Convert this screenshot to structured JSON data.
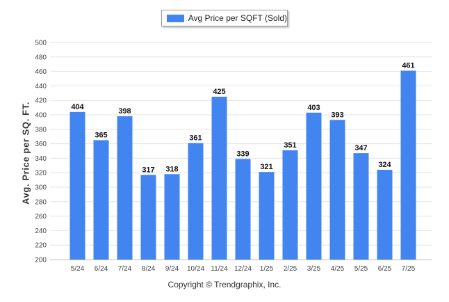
{
  "chart_data": {
    "type": "bar",
    "title": "",
    "xlabel": "",
    "ylabel": "Avg. Price per SQ. FT.",
    "categories": [
      "5/24",
      "6/24",
      "7/24",
      "8/24",
      "9/24",
      "10/24",
      "11/24",
      "12/24",
      "1/25",
      "2/25",
      "3/25",
      "4/25",
      "5/25",
      "6/25",
      "7/25"
    ],
    "series": [
      {
        "name": "Avg Price per SQFT (Sold)",
        "values": [
          404,
          365,
          398,
          317,
          318,
          361,
          425,
          339,
          321,
          351,
          403,
          393,
          347,
          324,
          461
        ]
      }
    ],
    "ylim": [
      200,
      500
    ],
    "yticks": [
      200,
      220,
      240,
      260,
      280,
      300,
      320,
      340,
      360,
      380,
      400,
      420,
      440,
      460,
      480,
      500
    ],
    "grid": true,
    "legend_position": "top-center",
    "colors": {
      "bar": "#4285f0"
    }
  },
  "footer": {
    "copyright": "Copyright © Trendgraphix, Inc."
  }
}
